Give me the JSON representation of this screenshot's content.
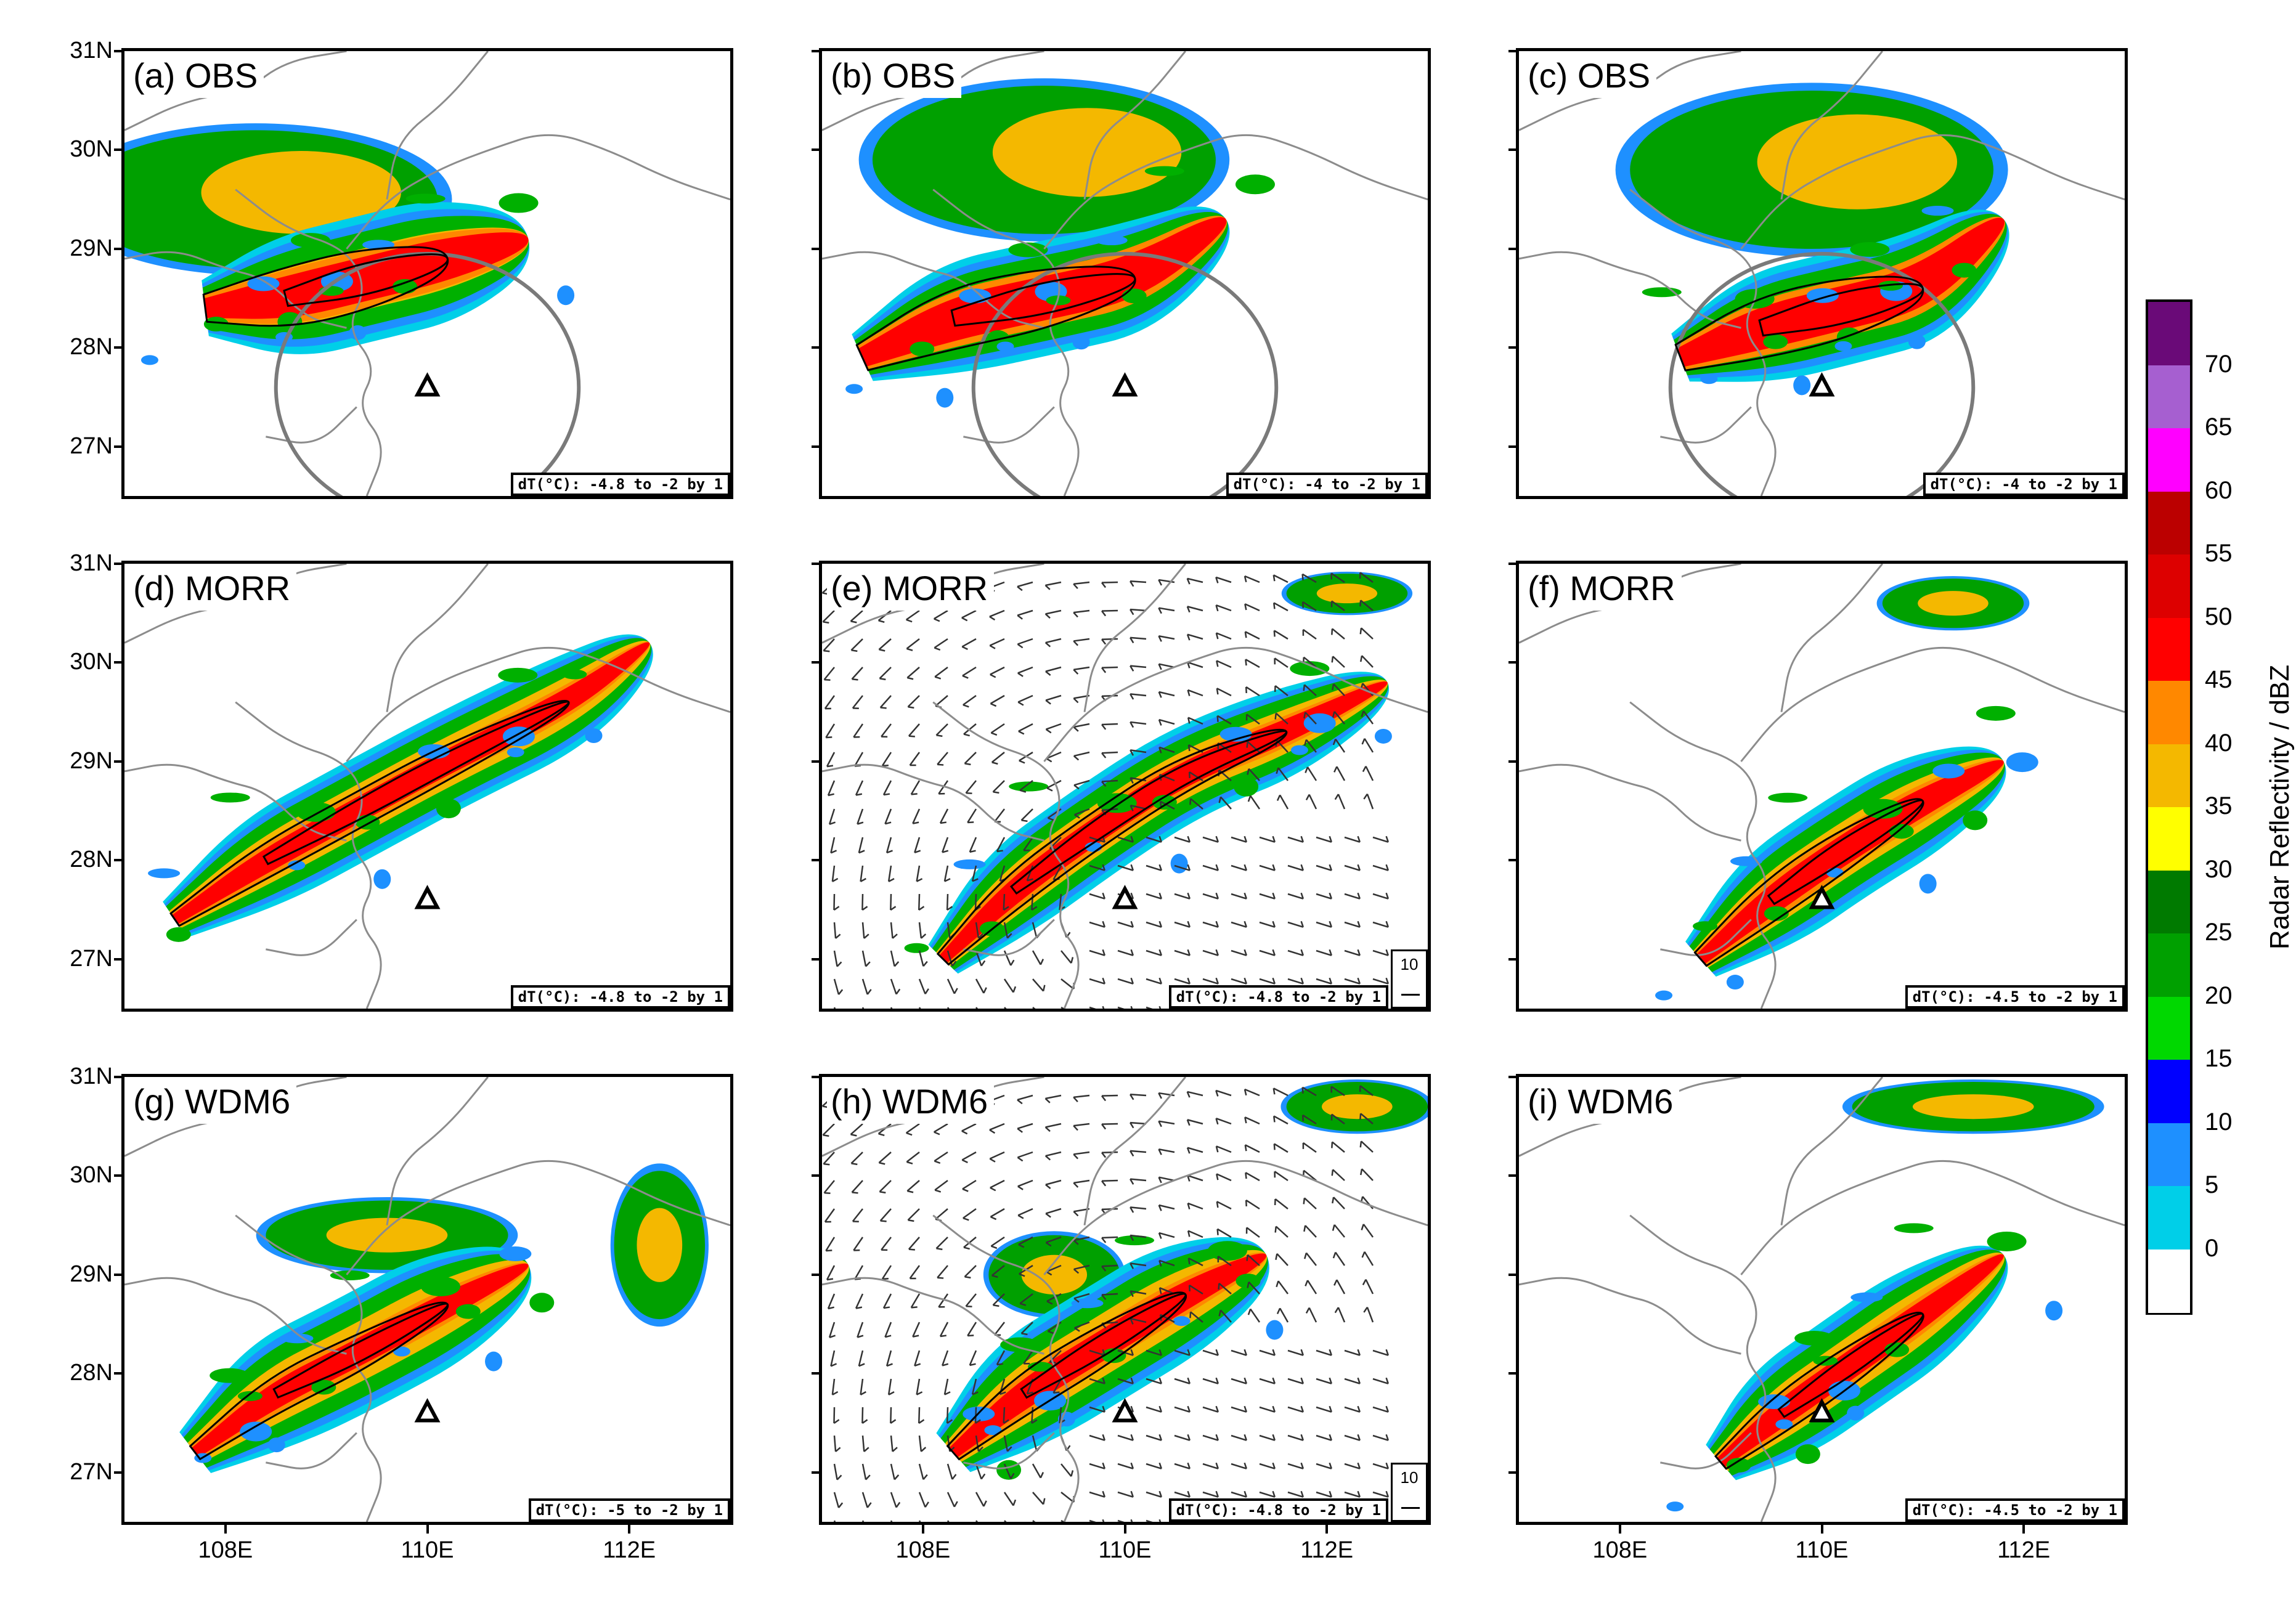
{
  "panels": [
    {
      "label": "(a) OBS",
      "dt": "dT(°C): -4.8 to -2 by 1",
      "type": "obs"
    },
    {
      "label": "(b) OBS",
      "dt": "dT(°C): -4 to -2 by 1",
      "type": "obs"
    },
    {
      "label": "(c) OBS",
      "dt": "dT(°C): -4 to -2 by 1",
      "type": "obs"
    },
    {
      "label": "(d) MORR",
      "dt": "dT(°C): -4.8 to -2 by 1",
      "type": "sim"
    },
    {
      "label": "(e) MORR",
      "dt": "dT(°C): -4.8 to -2 by 1",
      "type": "sim",
      "wind": true,
      "ref_vector": "10"
    },
    {
      "label": "(f) MORR",
      "dt": "dT(°C): -4.5 to -2 by 1",
      "type": "sim"
    },
    {
      "label": "(g) WDM6",
      "dt": "dT(°C): -5 to -2 by 1",
      "type": "sim"
    },
    {
      "label": "(h) WDM6",
      "dt": "dT(°C): -4.8 to -2 by 1",
      "type": "sim",
      "wind": true,
      "ref_vector": "10"
    },
    {
      "label": "(i) WDM6",
      "dt": "dT(°C): -4.5 to -2 by 1",
      "type": "sim"
    }
  ],
  "lat_labels": [
    "31N",
    "30N",
    "29N",
    "28N",
    "27N"
  ],
  "lon_labels": [
    "108E",
    "110E",
    "112E"
  ],
  "radar_site": {
    "marker": "triangle-icon",
    "lon": 110.0,
    "lat": 27.6
  },
  "colorbar": {
    "title": "Radar Reflectivity / dBZ",
    "labels": [
      "70",
      "65",
      "60",
      "55",
      "50",
      "45",
      "40",
      "35",
      "30",
      "25",
      "20",
      "15",
      "10",
      "5",
      "0"
    ],
    "colors": [
      "#6a0a78",
      "#a65fd0",
      "#ff00ff",
      "#bb0000",
      "#dd0000",
      "#ff0000",
      "#ff8800",
      "#f4b800",
      "#ffff00",
      "#007a00",
      "#00a000",
      "#00d800",
      "#0000ff",
      "#1e90ff",
      "#00cfe8",
      "#ffffff"
    ]
  }
}
